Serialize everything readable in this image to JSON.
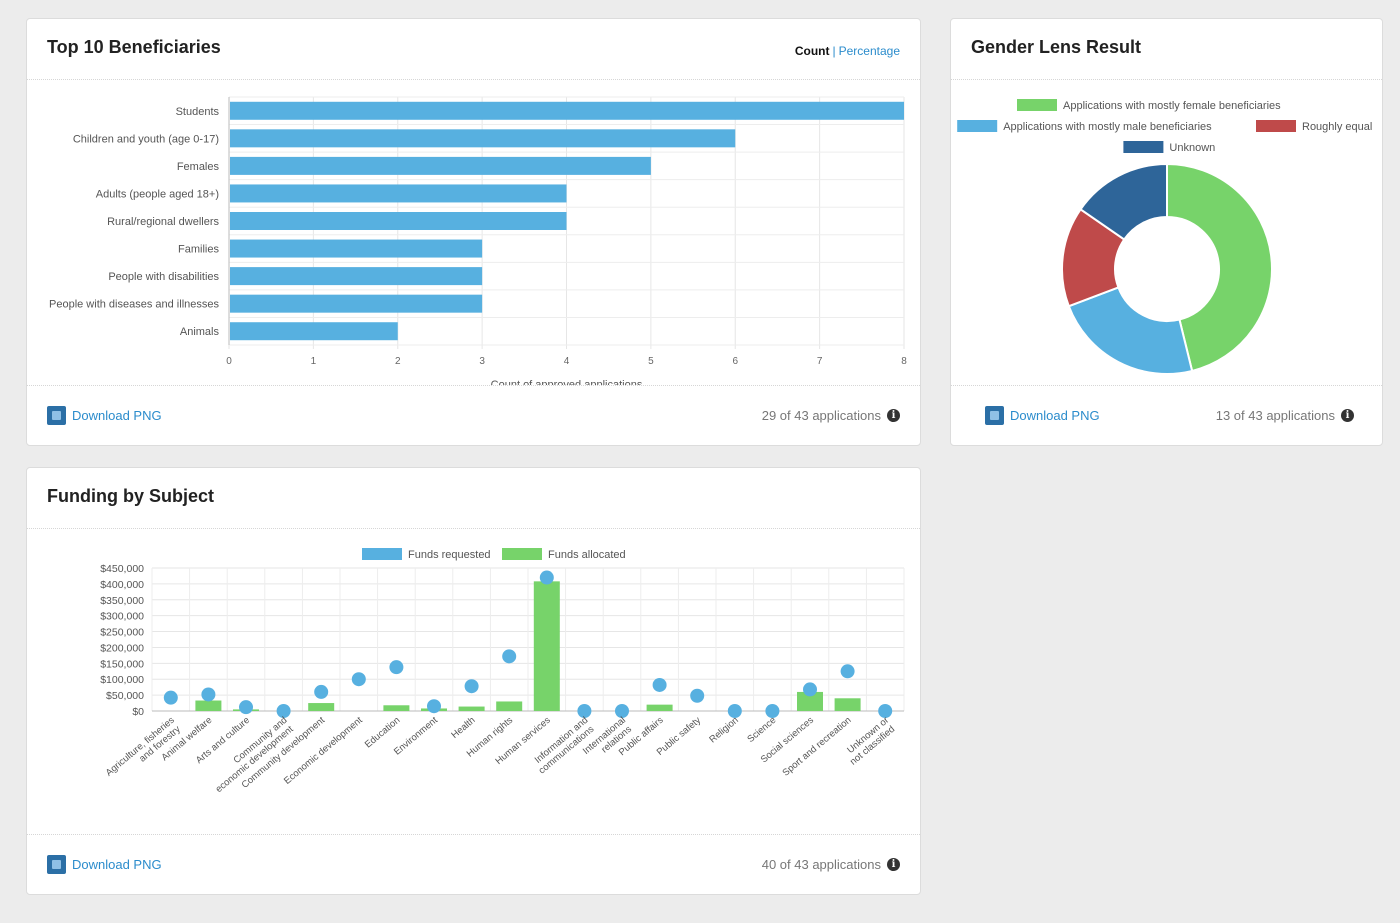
{
  "panels": {
    "beneficiaries": {
      "title": "Top 10 Beneficiaries",
      "toggle_count": "Count",
      "toggle_percentage": "Percentage",
      "download_label": "Download PNG",
      "applications_count": "29 of 43 applications"
    },
    "gender": {
      "title": "Gender Lens Result",
      "download_label": "Download PNG",
      "applications_count": "13 of 43 applications"
    },
    "funding": {
      "title": "Funding by Subject",
      "download_label": "Download PNG",
      "applications_count": "40 of 43 applications"
    }
  },
  "icons": {
    "download": "image-download-icon",
    "info": "info-icon"
  },
  "chart_data": [
    {
      "type": "bar",
      "orientation": "horizontal",
      "categories": [
        "Students",
        "Children and youth (age 0-17)",
        "Females",
        "Adults (people aged 18+)",
        "Rural/regional dwellers",
        "Families",
        "People with disabilities",
        "People with diseases and illnesses",
        "Animals"
      ],
      "values": [
        8,
        6,
        5,
        4,
        4,
        3,
        3,
        3,
        2
      ],
      "xlabel": "Count of approved applications",
      "xlim": [
        0,
        8
      ],
      "ticks": [
        "0",
        "1",
        "2",
        "3",
        "4",
        "5",
        "6",
        "7",
        "8"
      ],
      "color": "#57b0e0",
      "grid": true
    },
    {
      "type": "pie",
      "variant": "donut",
      "labels": [
        "Applications with mostly female beneficiaries",
        "Applications with mostly male beneficiaries",
        "Roughly equal",
        "Unknown"
      ],
      "values": [
        6,
        3,
        2,
        2
      ],
      "colors": [
        "#77d36a",
        "#57b0e0",
        "#bf4a4a",
        "#2e6599"
      ],
      "legend": "top"
    },
    {
      "type": "bar",
      "categories": [
        "Agriculture, fisheries and forestry",
        "Animal welfare",
        "Arts and culture",
        "Community and economic development",
        "Community development",
        "Economic development",
        "Education",
        "Environment",
        "Health",
        "Human rights",
        "Human services",
        "Information and communications",
        "International relations",
        "Public affairs",
        "Public safety",
        "Religion",
        "Science",
        "Social sciences",
        "Sport and recreation",
        "Unknown or not classified"
      ],
      "series": [
        {
          "name": "Funds requested",
          "display": "point",
          "color": "#57b0e0",
          "values": [
            42000,
            52000,
            12000,
            0,
            60000,
            100000,
            138000,
            15000,
            78000,
            172000,
            420000,
            0,
            0,
            82000,
            48000,
            0,
            0,
            68000,
            125000,
            0
          ]
        },
        {
          "name": "Funds allocated",
          "display": "bar",
          "color": "#77d36a",
          "values": [
            0,
            33000,
            5000,
            0,
            25000,
            0,
            18000,
            8000,
            14000,
            30000,
            408000,
            0,
            0,
            20000,
            0,
            0,
            0,
            60000,
            40000,
            0
          ]
        }
      ],
      "ylim": [
        0,
        450000
      ],
      "yticks": [
        "$0",
        "$50,000",
        "$100,000",
        "$150,000",
        "$200,000",
        "$250,000",
        "$300,000",
        "$350,000",
        "$400,000",
        "$450,000"
      ],
      "legend": "top",
      "grid": true
    }
  ]
}
